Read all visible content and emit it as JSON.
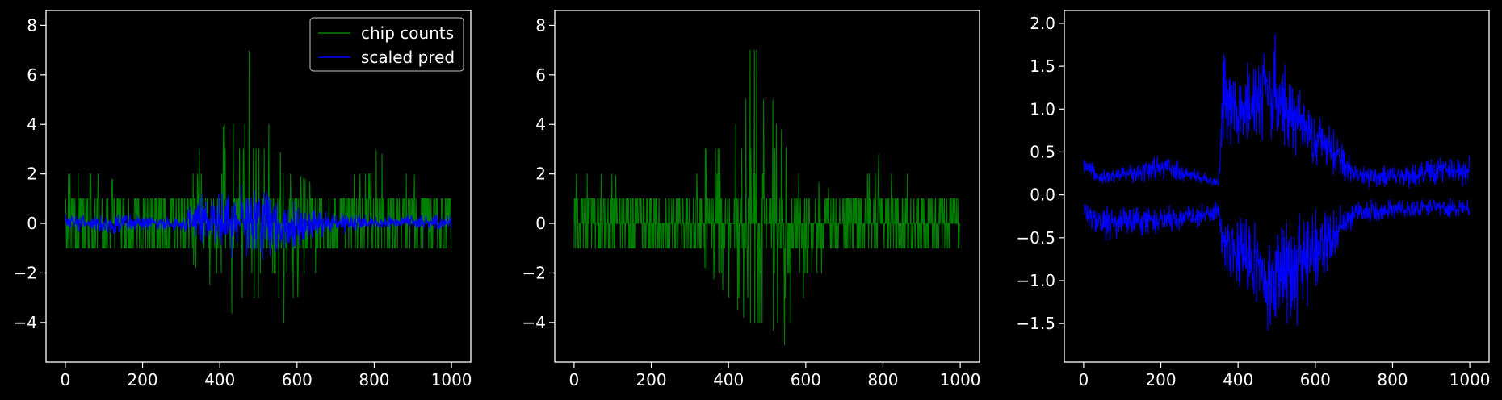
{
  "colors": {
    "background": "#000000",
    "axes_edge": "#ffffff",
    "text": "#ffffff",
    "chip": "#008000",
    "pred": "#0000ff"
  },
  "chart_data": [
    {
      "type": "line",
      "title": "",
      "xlabel": "",
      "ylabel": "",
      "xlim": [
        -50,
        1050
      ],
      "ylim": [
        -5.6,
        8.6
      ],
      "xticks": [
        0,
        200,
        400,
        600,
        800,
        1000
      ],
      "yticks": [
        -4,
        -2,
        0,
        2,
        4,
        6,
        8
      ],
      "xtick_labels": [
        "0",
        "200",
        "400",
        "600",
        "800",
        "1000"
      ],
      "ytick_labels": [
        "−4",
        "−2",
        "0",
        "2",
        "4",
        "6",
        "8"
      ],
      "grid": false,
      "legend": {
        "position": "top-right",
        "entries": [
          "chip counts",
          "scaled pred"
        ]
      },
      "series": [
        {
          "name": "chip counts",
          "color": "#008000",
          "x": [
            0,
            999
          ],
          "envelope": {
            "x": [
              0,
              100,
              200,
              300,
              350,
              400,
              450,
              500,
              550,
              600,
              700,
              800,
              900,
              999
            ],
            "upper": [
              2,
              2,
              1,
              1,
              4,
              3,
              8,
              6,
              3,
              2,
              1,
              3,
              2,
              1
            ],
            "lower": [
              -1,
              -1,
              -1,
              -1,
              -2,
              -3,
              -4,
              -4,
              -5,
              -3,
              -1,
              -1,
              -1,
              -1
            ]
          }
        },
        {
          "name": "scaled pred",
          "color": "#0000ff",
          "x": [
            0,
            999
          ],
          "envelope": {
            "x": [
              0,
              100,
              200,
              300,
              350,
              400,
              450,
              500,
              550,
              600,
              700,
              800,
              900,
              999
            ],
            "upper": [
              0.5,
              0.4,
              0.4,
              0.3,
              1.2,
              1.5,
              1.8,
              2.0,
              1.5,
              1.0,
              0.5,
              0.3,
              0.4,
              0.4
            ],
            "lower": [
              -0.3,
              -0.5,
              -0.4,
              -0.3,
              -1.0,
              -1.3,
              -1.7,
              -1.9,
              -1.5,
              -1.0,
              -0.5,
              -0.3,
              -0.3,
              -0.3
            ]
          }
        }
      ]
    },
    {
      "type": "line",
      "title": "",
      "xlabel": "",
      "ylabel": "",
      "xlim": [
        -50,
        1050
      ],
      "ylim": [
        -5.6,
        8.6
      ],
      "xticks": [
        0,
        200,
        400,
        600,
        800,
        1000
      ],
      "yticks": [
        -4,
        -2,
        0,
        2,
        4,
        6,
        8
      ],
      "xtick_labels": [
        "0",
        "200",
        "400",
        "600",
        "800",
        "1000"
      ],
      "ytick_labels": [
        "−4",
        "−2",
        "0",
        "2",
        "4",
        "6",
        "8"
      ],
      "grid": false,
      "series": [
        {
          "name": "",
          "color": "#008000",
          "x": [
            0,
            999
          ],
          "envelope": {
            "x": [
              0,
              100,
              200,
              300,
              350,
              400,
              450,
              500,
              550,
              600,
              700,
              800,
              900,
              999
            ],
            "upper": [
              2,
              2,
              1,
              1,
              4,
              3,
              8,
              6,
              3,
              2,
              1,
              3,
              2,
              1
            ],
            "lower": [
              -1,
              -1,
              -1,
              -1,
              -2,
              -3,
              -4,
              -4,
              -5,
              -3,
              -1,
              -1,
              -1,
              -1
            ]
          }
        }
      ]
    },
    {
      "type": "line",
      "title": "",
      "xlabel": "",
      "ylabel": "",
      "xlim": [
        -50,
        1050
      ],
      "ylim": [
        -1.95,
        2.15
      ],
      "xticks": [
        0,
        200,
        400,
        600,
        800,
        1000
      ],
      "yticks": [
        -1.5,
        -1.0,
        -0.5,
        0.0,
        0.5,
        1.0,
        1.5,
        2.0
      ],
      "xtick_labels": [
        "0",
        "200",
        "400",
        "600",
        "800",
        "1000"
      ],
      "ytick_labels": [
        "−1.5",
        "−1.0",
        "−0.5",
        "0.0",
        "0.5",
        "1.0",
        "1.5",
        "2.0"
      ],
      "grid": false,
      "series": [
        {
          "name": "",
          "color": "#0000ff",
          "x": [
            0,
            999
          ],
          "envelope": {
            "x": [
              0,
              50,
              100,
              200,
              300,
              350,
              360,
              400,
              450,
              500,
              550,
              600,
              650,
              700,
              800,
              900,
              999
            ],
            "upper": [
              0.45,
              0.3,
              0.35,
              0.5,
              0.3,
              0.2,
              1.8,
              1.4,
              1.9,
              1.9,
              1.3,
              1.0,
              0.8,
              0.4,
              0.35,
              0.45,
              0.5
            ],
            "lower": [
              0.2,
              0.1,
              0.12,
              0.15,
              0.12,
              0.08,
              0.35,
              0.45,
              0.5,
              0.5,
              0.4,
              0.25,
              0.15,
              0.08,
              0.06,
              0.08,
              0.1
            ]
          }
        },
        {
          "name": "",
          "color": "#0000ff",
          "x": [
            0,
            999
          ],
          "envelope": {
            "x": [
              0,
              50,
              100,
              200,
              300,
              350,
              360,
              400,
              450,
              500,
              550,
              600,
              650,
              700,
              800,
              900,
              999
            ],
            "upper": [
              -0.05,
              -0.1,
              -0.1,
              -0.1,
              -0.08,
              -0.06,
              -0.1,
              -0.15,
              -0.2,
              -0.15,
              -0.15,
              -0.1,
              -0.1,
              -0.05,
              -0.05,
              -0.03,
              -0.02
            ],
            "lower": [
              -0.3,
              -0.6,
              -0.5,
              -0.5,
              -0.4,
              -0.3,
              -0.9,
              -1.2,
              -1.45,
              -1.8,
              -1.6,
              -1.2,
              -0.8,
              -0.4,
              -0.3,
              -0.25,
              -0.3
            ]
          }
        }
      ]
    }
  ]
}
